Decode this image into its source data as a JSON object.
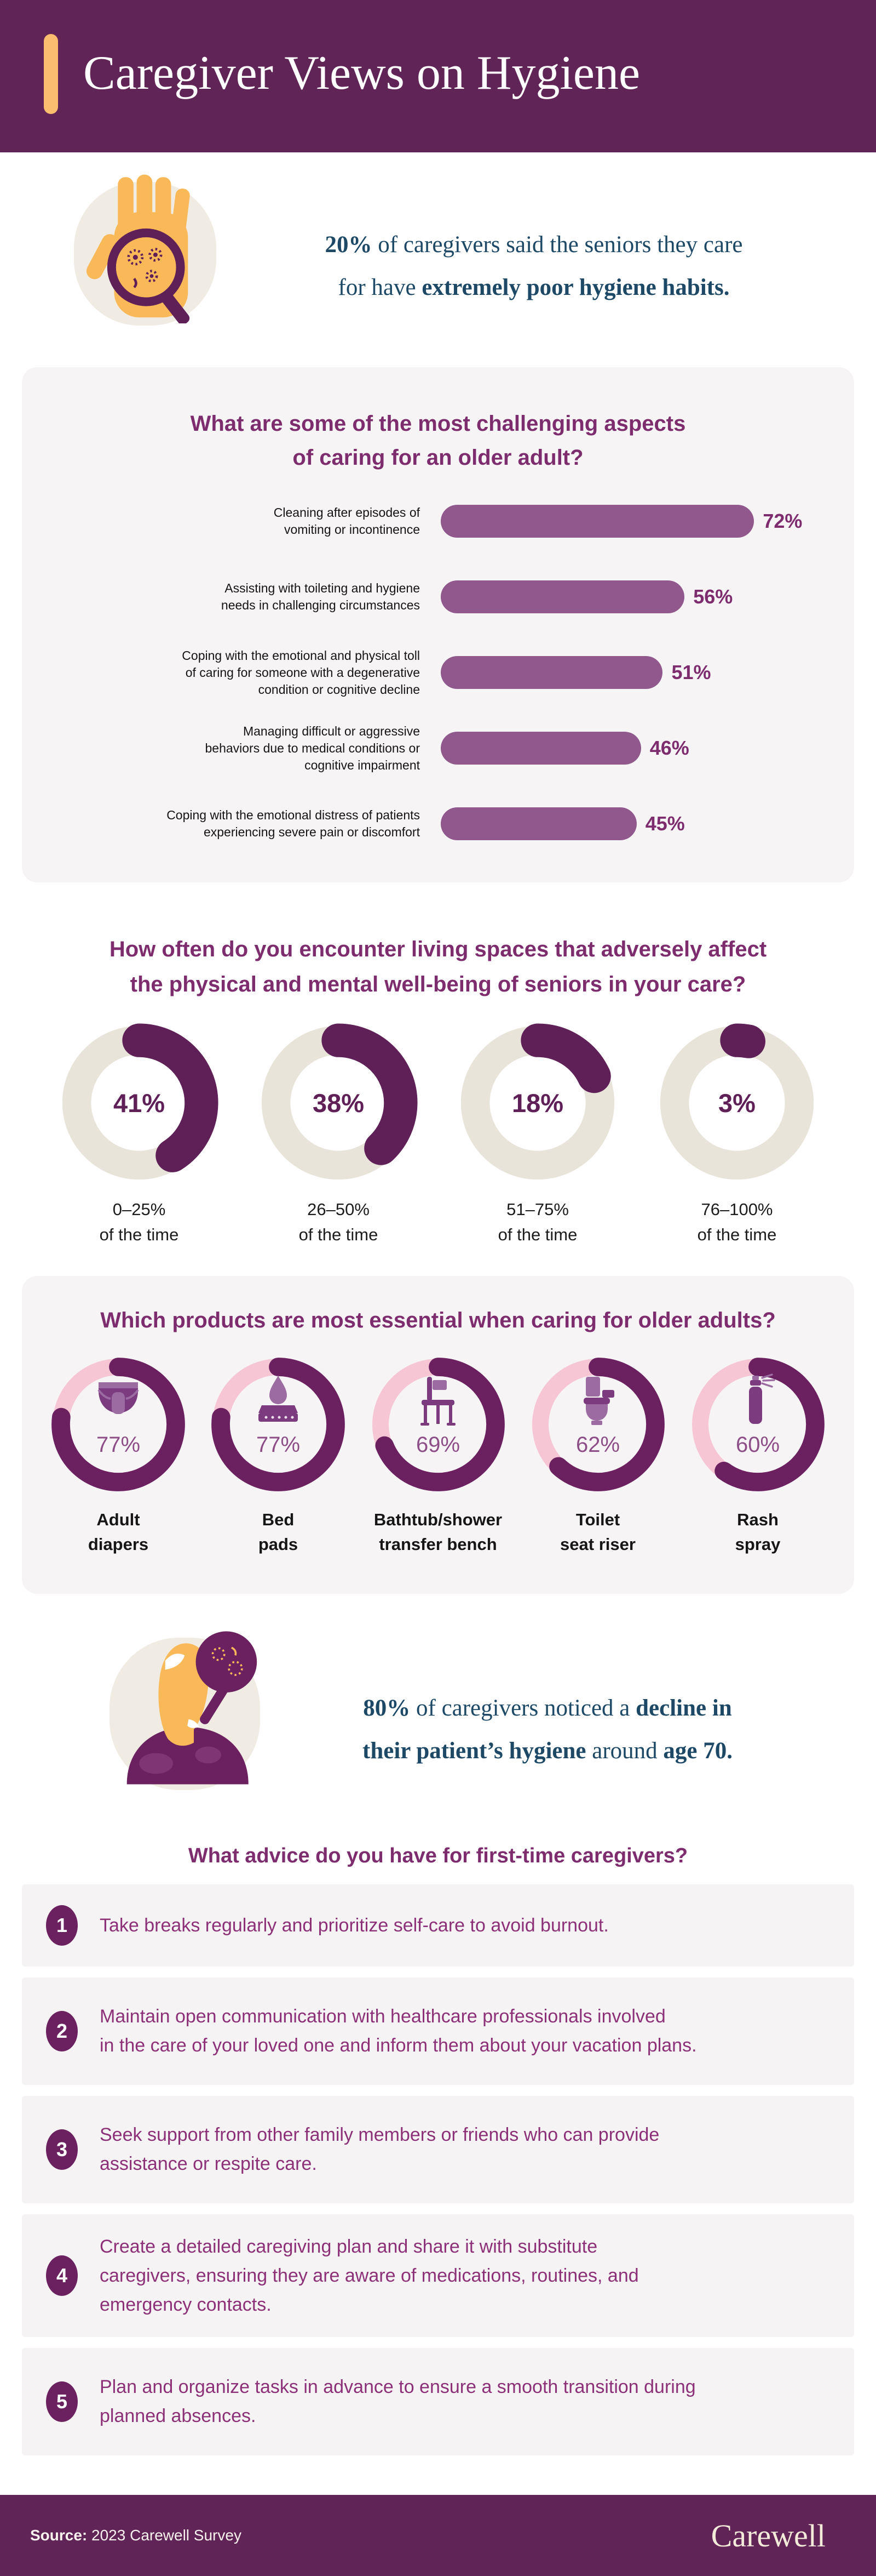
{
  "header": {
    "title": "Caregiver Views on Hygiene"
  },
  "colors": {
    "header_purple": "#612457",
    "gold_accent": "#fbbe6e",
    "stat_navy": "#1d4966",
    "heading_plum": "#7d2d6e",
    "bar_fill": "#90588c",
    "card_bg": "#f7f4f6",
    "donut_arc": "#5f2058",
    "donut_track": "#e9e4da",
    "ring_arc": "#6b2160",
    "ring_track": "#f6c6d4",
    "ring_pct_text": "#8d4e88",
    "advice_text": "#8c3077",
    "badge_purple": "#6b2160",
    "blob_beige": "#f0ebe3",
    "hand_gold": "#f9b959",
    "footer_cream": "#f3ead9"
  },
  "stat_hand": {
    "icon": "hand-magnifier-icon",
    "lines": [
      [
        {
          "t": "20%",
          "b": true
        },
        {
          "t": " of caregivers said the seniors they care",
          "b": false
        }
      ],
      [
        {
          "t": "for have ",
          "b": false
        },
        {
          "t": "extremely poor hygiene habits.",
          "b": true
        }
      ]
    ]
  },
  "sections": {
    "challenges": {
      "title_lines": [
        "What are some of the most challenging aspects",
        "of caring for an older adult?"
      ],
      "items": [
        {
          "label_lines": [
            "Cleaning after episodes of",
            "vomiting or incontinence"
          ],
          "value": 72,
          "value_label": "72%"
        },
        {
          "label_lines": [
            "Assisting with toileting and hygiene",
            "needs in challenging circumstances"
          ],
          "value": 56,
          "value_label": "56%"
        },
        {
          "label_lines": [
            "Coping with the emotional and physical toll",
            "of caring for someone with a degenerative",
            "condition or cognitive decline"
          ],
          "value": 51,
          "value_label": "51%"
        },
        {
          "label_lines": [
            "Managing difficult or aggressive",
            "behaviors due to medical conditions or",
            "cognitive impairment"
          ],
          "value": 46,
          "value_label": "46%"
        },
        {
          "label_lines": [
            "Coping with the emotional distress of patients",
            "experiencing severe pain or discomfort"
          ],
          "value": 45,
          "value_label": "45%"
        }
      ]
    },
    "frequency": {
      "title_lines": [
        "How often do you encounter living spaces that adversely affect",
        "the physical and mental well-being of seniors in your care?"
      ],
      "items": [
        {
          "value": 41,
          "pct_label": "41%",
          "range": "0–25%",
          "suffix": "of the time"
        },
        {
          "value": 38,
          "pct_label": "38%",
          "range": "26–50%",
          "suffix": "of the time"
        },
        {
          "value": 18,
          "pct_label": "18%",
          "range": "51–75%",
          "suffix": "of the time"
        },
        {
          "value": 3,
          "pct_label": "3%",
          "range": "76–100%",
          "suffix": "of the time"
        }
      ]
    },
    "products": {
      "title_lines": [
        "Which products are most essential when caring for older adults?"
      ],
      "items": [
        {
          "value": 77,
          "pct_label": "77%",
          "icon": "adult-diapers-icon",
          "label_lines": [
            "Adult",
            "diapers"
          ]
        },
        {
          "value": 77,
          "pct_label": "77%",
          "icon": "bed-pads-icon",
          "label_lines": [
            "Bed",
            "pads"
          ]
        },
        {
          "value": 69,
          "pct_label": "69%",
          "icon": "transfer-bench-icon",
          "label_lines": [
            "Bathtub/shower",
            "transfer bench"
          ]
        },
        {
          "value": 62,
          "pct_label": "62%",
          "icon": "toilet-seat-riser-icon",
          "label_lines": [
            "Toilet",
            "seat riser"
          ]
        },
        {
          "value": 60,
          "pct_label": "60%",
          "icon": "rash-spray-icon",
          "label_lines": [
            "Rash",
            "spray"
          ]
        }
      ]
    },
    "stat_age": {
      "icon": "head-magnifier-icon",
      "lines": [
        [
          {
            "t": "80%",
            "b": true
          },
          {
            "t": " of caregivers noticed a ",
            "b": false
          },
          {
            "t": "decline in",
            "b": true
          }
        ],
        [
          {
            "t": "their patient’s hygiene",
            "b": true
          },
          {
            "t": " around ",
            "b": false
          },
          {
            "t": "age 70.",
            "b": true
          }
        ]
      ]
    },
    "advice": {
      "title_lines": [
        "What advice do you have for first-time caregivers?"
      ],
      "items": [
        {
          "num": "1",
          "lines": [
            "Take breaks regularly and prioritize self-care to avoid burnout."
          ]
        },
        {
          "num": "2",
          "lines": [
            "Maintain open communication with healthcare professionals involved",
            "in the care of your loved one and inform them about your vacation plans."
          ]
        },
        {
          "num": "3",
          "lines": [
            "Seek support from other family members or friends who can provide",
            "assistance or respite care."
          ]
        },
        {
          "num": "4",
          "lines": [
            "Create a detailed caregiving plan and share it with substitute",
            "caregivers, ensuring they are aware of medications, routines, and",
            "emergency contacts."
          ]
        },
        {
          "num": "5",
          "lines": [
            "Plan and organize tasks in advance to ensure a smooth transition during",
            "planned absences."
          ]
        }
      ]
    }
  },
  "footer": {
    "source_label": "Source:",
    "source_value": " 2023 Carewell Survey",
    "logo": "Carewell"
  },
  "chart_data": [
    {
      "type": "bar",
      "orientation": "horizontal",
      "title": "What are some of the most challenging aspects of caring for an older adult?",
      "categories": [
        "Cleaning after episodes of vomiting or incontinence",
        "Assisting with toileting and hygiene needs in challenging circumstances",
        "Coping with the emotional and physical toll of caring for someone with a degenerative condition or cognitive decline",
        "Managing difficult or aggressive behaviors due to medical conditions or cognitive impairment",
        "Coping with the emotional distress of patients experiencing severe pain or discomfort"
      ],
      "values": [
        72,
        56,
        51,
        46,
        45
      ],
      "unit": "%",
      "xlim": [
        0,
        100
      ],
      "bar_color": "#90588c",
      "grid": false,
      "legend": false
    },
    {
      "type": "pie",
      "subtype": "donut-multiples",
      "title": "How often do you encounter living spaces that adversely affect the physical and mental well-being of seniors in your care?",
      "categories": [
        "0–25% of the time",
        "26–50% of the time",
        "51–75% of the time",
        "76–100% of the time"
      ],
      "values": [
        41,
        38,
        18,
        3
      ],
      "unit": "%",
      "arc_color": "#5f2058",
      "track_color": "#e9e4da"
    },
    {
      "type": "pie",
      "subtype": "ring-multiples",
      "title": "Which products are most essential when caring for older adults?",
      "categories": [
        "Adult diapers",
        "Bed pads",
        "Bathtub/shower transfer bench",
        "Toilet seat riser",
        "Rash spray"
      ],
      "values": [
        77,
        77,
        69,
        62,
        60
      ],
      "unit": "%",
      "arc_color": "#6b2160",
      "track_color": "#f6c6d4"
    }
  ]
}
